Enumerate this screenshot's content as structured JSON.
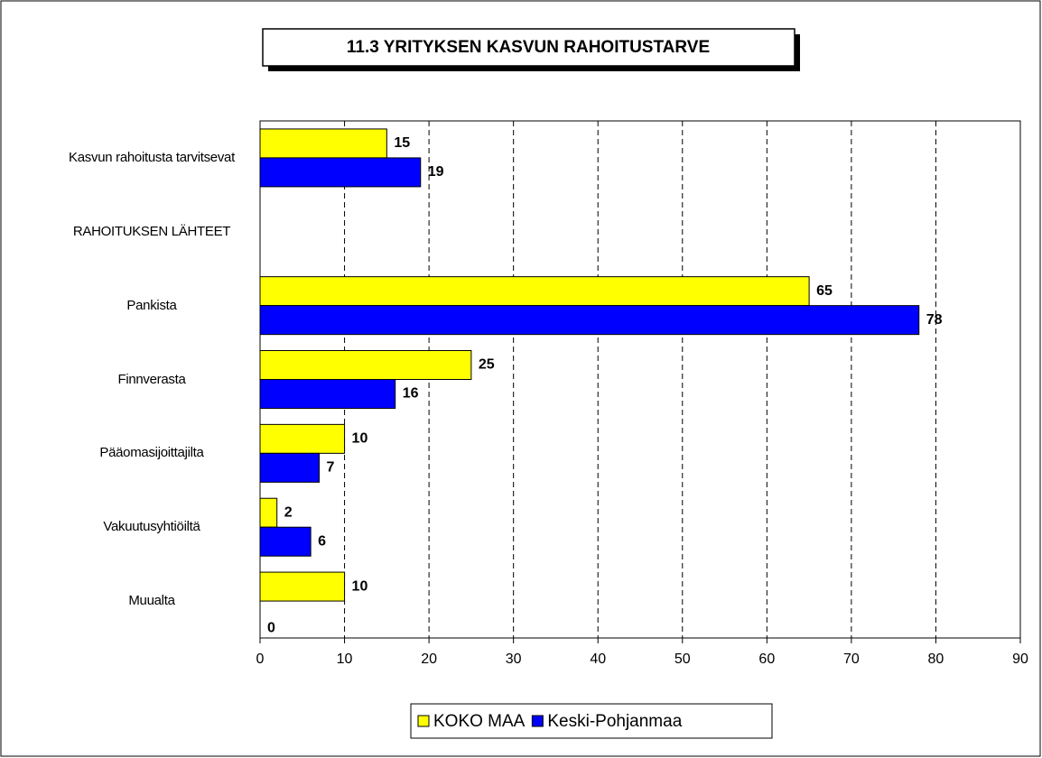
{
  "chart_data": {
    "type": "barh",
    "title": "11.3 YRITYKSEN KASVUN RAHOITUSTARVE",
    "categories": [
      "Kasvun rahoitusta tarvitsevat",
      "RAHOITUKSEN LÄHTEET",
      "Pankista",
      "Finnverasta",
      "Pääomasijoittajilta",
      "Vakuutusyhtiöiltä",
      "Muualta"
    ],
    "series": [
      {
        "name": "KOKO MAA",
        "color": "#ffff00",
        "values": [
          15,
          null,
          65,
          25,
          10,
          2,
          10
        ]
      },
      {
        "name": "Keski-Pohjanmaa",
        "color": "#0000ff",
        "values": [
          19,
          null,
          78,
          16,
          7,
          6,
          0
        ]
      }
    ],
    "xlim": [
      0,
      90
    ],
    "xticks": [
      0,
      10,
      20,
      30,
      40,
      50,
      60,
      70,
      80,
      90
    ],
    "grid": true,
    "legend": "bottom"
  }
}
